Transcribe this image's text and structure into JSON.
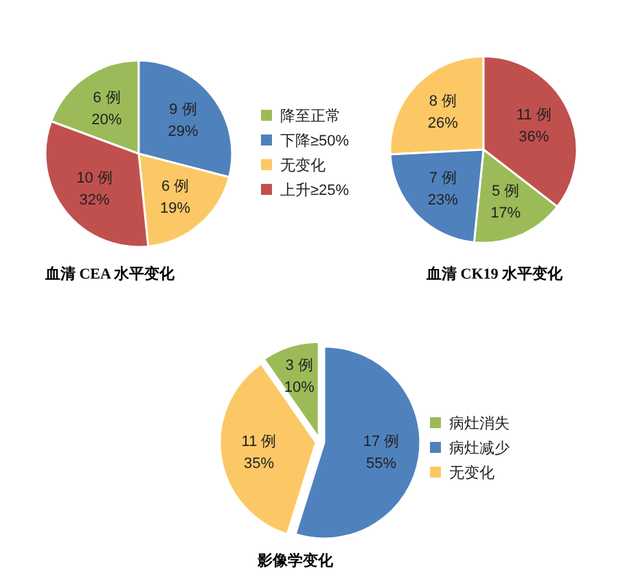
{
  "chart_data": [
    {
      "type": "pie",
      "title": "血清 CEA 水平变化",
      "legend": "right",
      "categories": [
        "降至正常",
        "下降≥50%",
        "无变化",
        "上升≥25%"
      ],
      "values": [
        6,
        9,
        6,
        10
      ],
      "colors": [
        "#9bbb59",
        "#4f81bd",
        "#fcc865",
        "#c0504d"
      ],
      "value_labels": [
        "6 例\n20%",
        "9 例\n29%",
        "6 例\n19%",
        "10 例\n32%"
      ]
    },
    {
      "type": "pie",
      "title": "血清 CK19 水平变化",
      "categories": [
        null,
        null,
        null,
        null
      ],
      "values": [
        8,
        11,
        5,
        7
      ],
      "colors": [
        "#fcc865",
        "#c0504d",
        "#9bbb59",
        "#4f81bd"
      ],
      "value_labels": [
        "8 例\n26%",
        "11 例\n36%",
        "5 例\n17%",
        "7 例\n23%"
      ]
    },
    {
      "type": "pie",
      "title": "影像学变化",
      "legend": "right",
      "categories": [
        "病灶消失",
        "病灶减少",
        "无变化"
      ],
      "values": [
        3,
        17,
        11
      ],
      "colors": [
        "#9bbb59",
        "#4f81bd",
        "#fcc865"
      ],
      "value_labels": [
        "3 例\n10%",
        "17 例\n55%",
        "11 例\n35%"
      ]
    }
  ]
}
